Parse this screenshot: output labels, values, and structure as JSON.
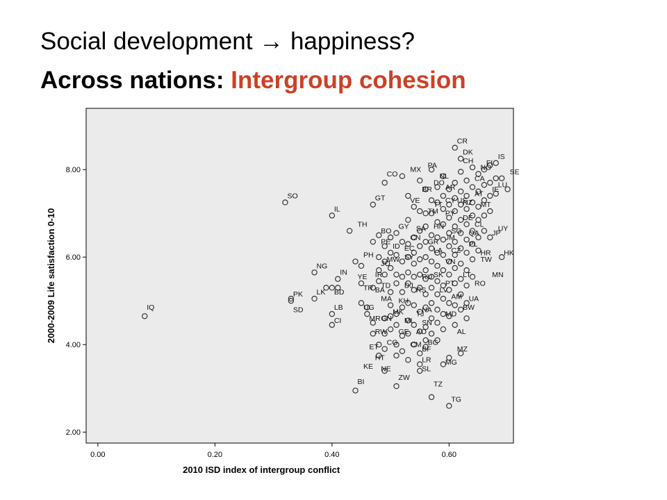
{
  "slide": {
    "title_part1": "Social development",
    "arrow": "→",
    "title_part2": "happiness?",
    "subtitle_prefix": "Across nations:",
    "subtitle_highlight": "Intergroup cohesion",
    "accent_color": "#cc4125"
  },
  "chart_data": {
    "type": "scatter",
    "xlabel": "2010 ISD index of intergroup conflict",
    "ylabel": "2000-2009 Life satisfaction 0-10",
    "xlim": [
      -0.02,
      0.71
    ],
    "ylim": [
      1.75,
      9.4
    ],
    "xticks": [
      "0.00",
      "0.20",
      "0.40",
      "0.60"
    ],
    "xtick_values": [
      0,
      0.2,
      0.4,
      0.6
    ],
    "yticks": [
      "2.00",
      "4.00",
      "6.00",
      "8.00"
    ],
    "ytick_values": [
      2,
      4,
      6,
      8
    ],
    "plot_background": "#ebebeb",
    "marker_color": "#333333",
    "grid": false,
    "labeled_points": [
      {
        "label": "CR",
        "x": 0.61,
        "y": 8.5
      },
      {
        "label": "DK",
        "x": 0.62,
        "y": 8.25
      },
      {
        "label": "FI",
        "x": 0.66,
        "y": 8.0
      },
      {
        "label": "IS",
        "x": 0.68,
        "y": 8.15
      },
      {
        "label": "CH",
        "x": 0.62,
        "y": 8.05
      },
      {
        "label": "NO",
        "x": 0.65,
        "y": 7.9
      },
      {
        "label": "SE",
        "x": 0.7,
        "y": 7.8
      },
      {
        "label": "PA",
        "x": 0.56,
        "y": 7.95
      },
      {
        "label": "MX",
        "x": 0.53,
        "y": 7.85
      },
      {
        "label": "CO",
        "x": 0.49,
        "y": 7.75
      },
      {
        "label": "NL",
        "x": 0.58,
        "y": 7.7
      },
      {
        "label": "DO",
        "x": 0.57,
        "y": 7.55
      },
      {
        "label": "CA",
        "x": 0.64,
        "y": 7.65
      },
      {
        "label": "AR",
        "x": 0.59,
        "y": 7.45
      },
      {
        "label": "BR",
        "x": 0.55,
        "y": 7.4
      },
      {
        "label": "AT",
        "x": 0.64,
        "y": 7.3
      },
      {
        "label": "IE",
        "x": 0.67,
        "y": 7.4
      },
      {
        "label": "LU",
        "x": 0.68,
        "y": 7.5
      },
      {
        "label": "GT",
        "x": 0.47,
        "y": 7.2
      },
      {
        "label": "VE",
        "x": 0.53,
        "y": 7.15
      },
      {
        "label": "TT",
        "x": 0.57,
        "y": 7.05
      },
      {
        "label": "CY",
        "x": 0.59,
        "y": 7.15
      },
      {
        "label": "US",
        "x": 0.61,
        "y": 7.15
      },
      {
        "label": "NZ",
        "x": 0.62,
        "y": 7.1
      },
      {
        "label": "MT",
        "x": 0.65,
        "y": 7.05
      },
      {
        "label": "SO",
        "x": 0.32,
        "y": 7.25
      },
      {
        "label": "IL",
        "x": 0.4,
        "y": 6.95
      },
      {
        "label": "PY",
        "x": 0.59,
        "y": 6.85
      },
      {
        "label": "TM",
        "x": 0.56,
        "y": 6.9
      },
      {
        "label": "DE",
        "x": 0.62,
        "y": 6.75
      },
      {
        "label": "CL",
        "x": 0.64,
        "y": 6.6
      },
      {
        "label": "GY",
        "x": 0.51,
        "y": 6.55
      },
      {
        "label": "SA",
        "x": 0.54,
        "y": 6.5
      },
      {
        "label": "HN",
        "x": 0.57,
        "y": 6.55
      },
      {
        "label": "SG",
        "x": 0.6,
        "y": 6.45
      },
      {
        "label": "QA",
        "x": 0.63,
        "y": 6.4
      },
      {
        "label": "JP",
        "x": 0.67,
        "y": 6.4
      },
      {
        "label": "UY",
        "x": 0.68,
        "y": 6.5
      },
      {
        "label": "TH",
        "x": 0.44,
        "y": 6.6
      },
      {
        "label": "BO",
        "x": 0.48,
        "y": 6.45
      },
      {
        "label": "CN",
        "x": 0.53,
        "y": 6.3
      },
      {
        "label": "JM",
        "x": 0.59,
        "y": 6.3
      },
      {
        "label": "GR",
        "x": 0.56,
        "y": 6.2
      },
      {
        "label": "PL",
        "x": 0.63,
        "y": 6.15
      },
      {
        "label": "PE",
        "x": 0.48,
        "y": 6.2
      },
      {
        "label": "ID",
        "x": 0.5,
        "y": 6.1
      },
      {
        "label": "EC",
        "x": 0.52,
        "y": 6.05
      },
      {
        "label": "LA",
        "x": 0.57,
        "y": 6.0
      },
      {
        "label": "CZ",
        "x": 0.6,
        "y": 6.0
      },
      {
        "label": "HR",
        "x": 0.65,
        "y": 5.95
      },
      {
        "label": "HK",
        "x": 0.69,
        "y": 5.95
      },
      {
        "label": "SY",
        "x": 0.52,
        "y": 5.85
      },
      {
        "label": "PH",
        "x": 0.45,
        "y": 5.9
      },
      {
        "label": "MW",
        "x": 0.49,
        "y": 5.8
      },
      {
        "label": "JO",
        "x": 0.48,
        "y": 5.7
      },
      {
        "label": "VN",
        "x": 0.59,
        "y": 5.75
      },
      {
        "label": "TW",
        "x": 0.65,
        "y": 5.8
      },
      {
        "label": "NG",
        "x": 0.37,
        "y": 5.65
      },
      {
        "label": "IN",
        "x": 0.41,
        "y": 5.5
      },
      {
        "label": "IR",
        "x": 0.47,
        "y": 5.45
      },
      {
        "label": "YE",
        "x": 0.44,
        "y": 5.4
      },
      {
        "label": "RU",
        "x": 0.55,
        "y": 5.4
      },
      {
        "label": "SK",
        "x": 0.57,
        "y": 5.45
      },
      {
        "label": "LT",
        "x": 0.62,
        "y": 5.45
      },
      {
        "label": "MN",
        "x": 0.67,
        "y": 5.45
      },
      {
        "label": "PT",
        "x": 0.59,
        "y": 5.25
      },
      {
        "label": "RO",
        "x": 0.64,
        "y": 5.25
      },
      {
        "label": "TD",
        "x": 0.48,
        "y": 5.2
      },
      {
        "label": "DJ",
        "x": 0.52,
        "y": 5.2
      },
      {
        "label": "TR",
        "x": 0.45,
        "y": 5.15
      },
      {
        "label": "BA",
        "x": 0.47,
        "y": 5.1
      },
      {
        "label": "RS",
        "x": 0.54,
        "y": 5.1
      },
      {
        "label": "LV",
        "x": 0.58,
        "y": 5.1
      },
      {
        "label": "AM",
        "x": 0.6,
        "y": 4.95
      },
      {
        "label": "UA",
        "x": 0.63,
        "y": 4.9
      },
      {
        "label": "LK",
        "x": 0.37,
        "y": 5.05
      },
      {
        "label": "BD",
        "x": 0.4,
        "y": 5.05
      },
      {
        "label": "PK",
        "x": 0.33,
        "y": 5.0
      },
      {
        "label": "MA",
        "x": 0.48,
        "y": 4.9
      },
      {
        "label": "KH",
        "x": 0.51,
        "y": 4.85
      },
      {
        "label": "UG",
        "x": 0.45,
        "y": 4.7
      },
      {
        "label": "BW",
        "x": 0.62,
        "y": 4.7
      },
      {
        "label": "NA",
        "x": 0.55,
        "y": 4.65
      },
      {
        "label": "MK",
        "x": 0.5,
        "y": 4.6
      },
      {
        "label": "TJ",
        "x": 0.54,
        "y": 4.55
      },
      {
        "label": "MD",
        "x": 0.59,
        "y": 4.55
      },
      {
        "label": "LB",
        "x": 0.4,
        "y": 4.7
      },
      {
        "label": "SD",
        "x": 0.33,
        "y": 4.65
      },
      {
        "label": "IQ",
        "x": 0.08,
        "y": 4.7
      },
      {
        "label": "MR",
        "x": 0.46,
        "y": 4.45
      },
      {
        "label": "GN",
        "x": 0.48,
        "y": 4.45
      },
      {
        "label": "ML",
        "x": 0.52,
        "y": 4.4
      },
      {
        "label": "SN",
        "x": 0.55,
        "y": 4.35
      },
      {
        "label": "CI",
        "x": 0.4,
        "y": 4.4
      },
      {
        "label": "AL",
        "x": 0.61,
        "y": 4.15
      },
      {
        "label": "RW",
        "x": 0.47,
        "y": 4.15
      },
      {
        "label": "GE",
        "x": 0.51,
        "y": 4.15
      },
      {
        "label": "AO",
        "x": 0.54,
        "y": 4.15
      },
      {
        "label": "CG",
        "x": 0.49,
        "y": 3.9
      },
      {
        "label": "CM",
        "x": 0.53,
        "y": 3.85
      },
      {
        "label": "BG",
        "x": 0.56,
        "y": 3.9
      },
      {
        "label": "BF",
        "x": 0.55,
        "y": 3.75
      },
      {
        "label": "MZ",
        "x": 0.61,
        "y": 3.75
      },
      {
        "label": "ET",
        "x": 0.46,
        "y": 3.8
      },
      {
        "label": "HT",
        "x": 0.47,
        "y": 3.55
      },
      {
        "label": "LR",
        "x": 0.55,
        "y": 3.5
      },
      {
        "label": "MG",
        "x": 0.59,
        "y": 3.45
      },
      {
        "label": "KE",
        "x": 0.45,
        "y": 3.35
      },
      {
        "label": "NE",
        "x": 0.48,
        "y": 3.3
      },
      {
        "label": "SL",
        "x": 0.55,
        "y": 3.3
      },
      {
        "label": "ZW",
        "x": 0.51,
        "y": 3.1
      },
      {
        "label": "BI",
        "x": 0.44,
        "y": 3.0
      },
      {
        "label": "TZ",
        "x": 0.57,
        "y": 2.95
      },
      {
        "label": "TG",
        "x": 0.6,
        "y": 2.6
      }
    ],
    "points": [
      [
        0.08,
        4.65
      ],
      [
        0.32,
        7.25
      ],
      [
        0.33,
        5.0
      ],
      [
        0.33,
        5.05
      ],
      [
        0.37,
        5.65
      ],
      [
        0.37,
        5.05
      ],
      [
        0.39,
        5.3
      ],
      [
        0.4,
        6.95
      ],
      [
        0.4,
        5.3
      ],
      [
        0.4,
        4.7
      ],
      [
        0.4,
        4.45
      ],
      [
        0.41,
        5.3
      ],
      [
        0.41,
        5.5
      ],
      [
        0.43,
        6.6
      ],
      [
        0.44,
        5.9
      ],
      [
        0.44,
        2.95
      ],
      [
        0.45,
        5.8
      ],
      [
        0.45,
        5.4
      ],
      [
        0.45,
        4.95
      ],
      [
        0.46,
        4.7
      ],
      [
        0.46,
        4.85
      ],
      [
        0.47,
        7.2
      ],
      [
        0.47,
        6.35
      ],
      [
        0.47,
        5.3
      ],
      [
        0.47,
        4.5
      ],
      [
        0.47,
        4.25
      ],
      [
        0.48,
        6.5
      ],
      [
        0.48,
        6.0
      ],
      [
        0.48,
        5.7
      ],
      [
        0.48,
        5.45
      ],
      [
        0.48,
        4.0
      ],
      [
        0.48,
        3.75
      ],
      [
        0.49,
        7.7
      ],
      [
        0.49,
        6.25
      ],
      [
        0.49,
        5.9
      ],
      [
        0.49,
        5.6
      ],
      [
        0.49,
        4.6
      ],
      [
        0.49,
        4.25
      ],
      [
        0.49,
        3.9
      ],
      [
        0.49,
        3.4
      ],
      [
        0.5,
        6.45
      ],
      [
        0.5,
        6.1
      ],
      [
        0.5,
        5.75
      ],
      [
        0.5,
        5.2
      ],
      [
        0.5,
        4.9
      ],
      [
        0.5,
        4.65
      ],
      [
        0.5,
        4.35
      ],
      [
        0.51,
        6.55
      ],
      [
        0.51,
        6.05
      ],
      [
        0.51,
        5.6
      ],
      [
        0.51,
        5.4
      ],
      [
        0.51,
        4.7
      ],
      [
        0.51,
        4.45
      ],
      [
        0.51,
        4.0
      ],
      [
        0.51,
        3.75
      ],
      [
        0.51,
        3.05
      ],
      [
        0.52,
        7.85
      ],
      [
        0.52,
        6.35
      ],
      [
        0.52,
        5.9
      ],
      [
        0.52,
        5.55
      ],
      [
        0.52,
        5.2
      ],
      [
        0.52,
        4.85
      ],
      [
        0.52,
        4.2
      ],
      [
        0.52,
        3.85
      ],
      [
        0.53,
        7.4
      ],
      [
        0.53,
        6.85
      ],
      [
        0.53,
        6.3
      ],
      [
        0.53,
        6.0
      ],
      [
        0.53,
        5.65
      ],
      [
        0.53,
        5.4
      ],
      [
        0.53,
        4.95
      ],
      [
        0.53,
        4.55
      ],
      [
        0.53,
        4.25
      ],
      [
        0.53,
        3.65
      ],
      [
        0.54,
        7.15
      ],
      [
        0.54,
        6.45
      ],
      [
        0.54,
        6.1
      ],
      [
        0.54,
        5.85
      ],
      [
        0.54,
        5.55
      ],
      [
        0.54,
        5.25
      ],
      [
        0.54,
        4.9
      ],
      [
        0.54,
        4.45
      ],
      [
        0.54,
        4.0
      ],
      [
        0.55,
        7.75
      ],
      [
        0.55,
        7.05
      ],
      [
        0.55,
        6.6
      ],
      [
        0.55,
        6.25
      ],
      [
        0.55,
        5.95
      ],
      [
        0.55,
        5.6
      ],
      [
        0.55,
        5.3
      ],
      [
        0.55,
        4.75
      ],
      [
        0.55,
        4.3
      ],
      [
        0.55,
        3.8
      ],
      [
        0.55,
        3.55
      ],
      [
        0.55,
        3.4
      ],
      [
        0.56,
        7.55
      ],
      [
        0.56,
        7.0
      ],
      [
        0.56,
        6.7
      ],
      [
        0.56,
        6.35
      ],
      [
        0.56,
        6.0
      ],
      [
        0.56,
        5.7
      ],
      [
        0.56,
        5.5
      ],
      [
        0.56,
        5.15
      ],
      [
        0.56,
        4.85
      ],
      [
        0.56,
        4.4
      ],
      [
        0.56,
        4.1
      ],
      [
        0.56,
        3.95
      ],
      [
        0.57,
        8.0
      ],
      [
        0.57,
        7.3
      ],
      [
        0.57,
        7.0
      ],
      [
        0.57,
        6.5
      ],
      [
        0.57,
        6.2
      ],
      [
        0.57,
        5.9
      ],
      [
        0.57,
        5.55
      ],
      [
        0.57,
        5.3
      ],
      [
        0.57,
        4.95
      ],
      [
        0.57,
        4.6
      ],
      [
        0.57,
        4.25
      ],
      [
        0.57,
        2.8
      ],
      [
        0.58,
        7.6
      ],
      [
        0.58,
        7.25
      ],
      [
        0.58,
        6.8
      ],
      [
        0.58,
        6.45
      ],
      [
        0.58,
        6.1
      ],
      [
        0.58,
        5.8
      ],
      [
        0.58,
        5.45
      ],
      [
        0.58,
        5.15
      ],
      [
        0.58,
        4.8
      ],
      [
        0.58,
        4.5
      ],
      [
        0.58,
        4.1
      ],
      [
        0.59,
        7.85
      ],
      [
        0.59,
        7.4
      ],
      [
        0.59,
        7.1
      ],
      [
        0.59,
        6.75
      ],
      [
        0.59,
        6.4
      ],
      [
        0.59,
        6.05
      ],
      [
        0.59,
        5.7
      ],
      [
        0.59,
        5.35
      ],
      [
        0.59,
        5.05
      ],
      [
        0.59,
        4.7
      ],
      [
        0.59,
        4.35
      ],
      [
        0.59,
        3.55
      ],
      [
        0.6,
        7.55
      ],
      [
        0.6,
        7.2
      ],
      [
        0.6,
        6.9
      ],
      [
        0.6,
        6.55
      ],
      [
        0.6,
        6.25
      ],
      [
        0.6,
        5.9
      ],
      [
        0.6,
        5.6
      ],
      [
        0.6,
        5.25
      ],
      [
        0.6,
        4.95
      ],
      [
        0.6,
        4.65
      ],
      [
        0.6,
        3.7
      ],
      [
        0.6,
        2.6
      ],
      [
        0.61,
        8.5
      ],
      [
        0.61,
        7.7
      ],
      [
        0.61,
        7.35
      ],
      [
        0.61,
        7.05
      ],
      [
        0.61,
        6.7
      ],
      [
        0.61,
        6.35
      ],
      [
        0.61,
        6.05
      ],
      [
        0.61,
        5.75
      ],
      [
        0.61,
        5.4
      ],
      [
        0.61,
        4.9
      ],
      [
        0.61,
        4.45
      ],
      [
        0.62,
        8.25
      ],
      [
        0.62,
        7.95
      ],
      [
        0.62,
        7.5
      ],
      [
        0.62,
        7.2
      ],
      [
        0.62,
        6.85
      ],
      [
        0.62,
        6.55
      ],
      [
        0.62,
        6.2
      ],
      [
        0.62,
        5.85
      ],
      [
        0.62,
        5.5
      ],
      [
        0.62,
        5.15
      ],
      [
        0.62,
        4.8
      ],
      [
        0.62,
        3.8
      ],
      [
        0.63,
        7.75
      ],
      [
        0.63,
        7.4
      ],
      [
        0.63,
        7.1
      ],
      [
        0.63,
        6.75
      ],
      [
        0.63,
        6.4
      ],
      [
        0.63,
        6.1
      ],
      [
        0.63,
        5.7
      ],
      [
        0.63,
        5.35
      ],
      [
        0.63,
        4.95
      ],
      [
        0.63,
        4.6
      ],
      [
        0.64,
        8.05
      ],
      [
        0.64,
        7.6
      ],
      [
        0.64,
        7.25
      ],
      [
        0.64,
        6.95
      ],
      [
        0.64,
        6.6
      ],
      [
        0.64,
        6.3
      ],
      [
        0.64,
        5.95
      ],
      [
        0.64,
        5.55
      ],
      [
        0.65,
        7.9
      ],
      [
        0.65,
        7.5
      ],
      [
        0.65,
        7.15
      ],
      [
        0.65,
        6.85
      ],
      [
        0.65,
        6.45
      ],
      [
        0.65,
        6.15
      ],
      [
        0.66,
        8.0
      ],
      [
        0.66,
        7.65
      ],
      [
        0.66,
        7.3
      ],
      [
        0.66,
        6.95
      ],
      [
        0.66,
        6.6
      ],
      [
        0.67,
        8.1
      ],
      [
        0.67,
        7.7
      ],
      [
        0.67,
        7.4
      ],
      [
        0.67,
        7.05
      ],
      [
        0.67,
        6.45
      ],
      [
        0.68,
        8.15
      ],
      [
        0.68,
        7.8
      ],
      [
        0.68,
        7.45
      ],
      [
        0.69,
        7.8
      ],
      [
        0.69,
        6.0
      ],
      [
        0.7,
        7.55
      ]
    ]
  }
}
